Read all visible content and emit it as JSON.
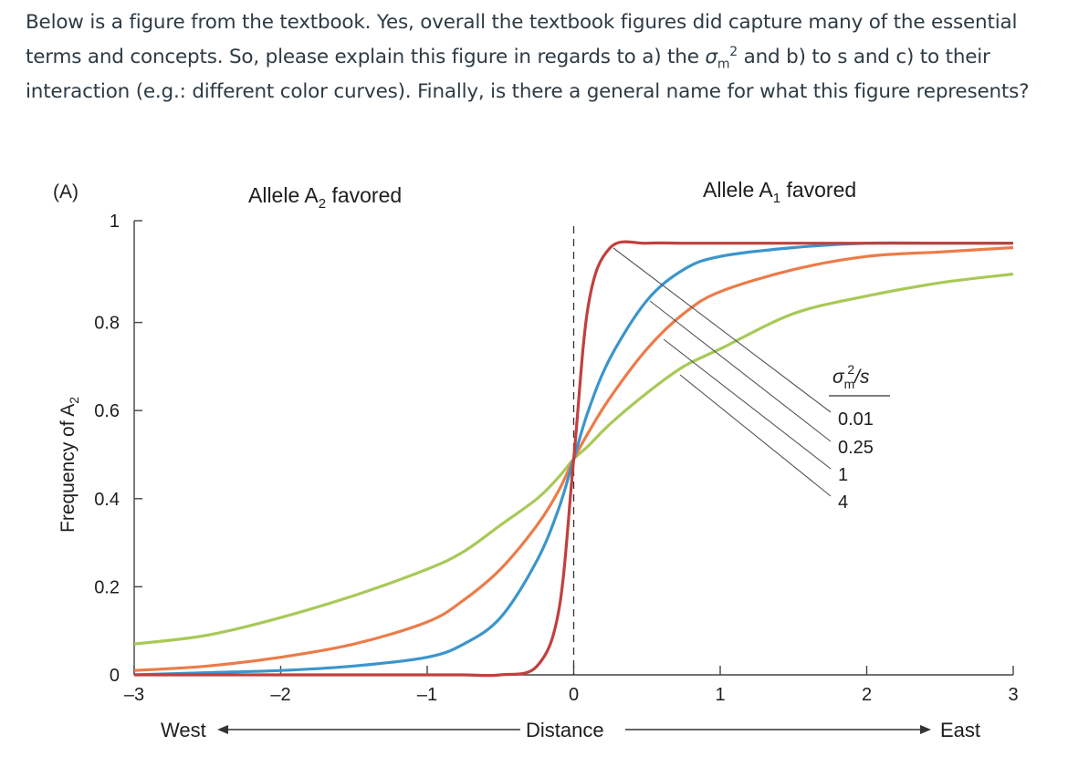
{
  "question": {
    "part1": "Below is a figure from the textbook. Yes, overall the textbook figures did capture many of the essential terms and concepts. So, please explain this figure in regards to a) the ",
    "sigma": "σ",
    "sub": "m",
    "sup": "2",
    "part2": " and b) to s and c) to their interaction (e.g.: different color curves). Finally, is there a general name for what this figure represents?"
  },
  "figure": {
    "panel_label": "(A)",
    "header_left": {
      "prefix": "Allele A",
      "sub": "2",
      "suffix": " favored"
    },
    "header_right": {
      "prefix": "Allele A",
      "sub": "1",
      "suffix": " favored"
    },
    "west_label": "West",
    "east_label": "East",
    "distance_label": "Distance",
    "legend_title": {
      "sigma": "σ",
      "sub": "m",
      "sup": "2",
      "slash": "/s"
    }
  },
  "chart_data": {
    "type": "line",
    "title": "",
    "xlabel": "Distance",
    "ylabel": "Frequency of A2",
    "ylabel_parts": {
      "text": "Frequency of A",
      "sub": "2"
    },
    "xlim": [
      -3,
      3
    ],
    "ylim": [
      0,
      1
    ],
    "x_ticks": [
      "–3",
      "–2",
      "–1",
      "0",
      "1",
      "2",
      "3"
    ],
    "y_ticks": [
      "0",
      "0.2",
      "0.4",
      "0.6",
      "0.8",
      "1"
    ],
    "grid": false,
    "center_line": 0,
    "x": [
      -3,
      -2.5,
      -2,
      -1.5,
      -1,
      -0.75,
      -0.5,
      -0.25,
      -0.1,
      0,
      0.1,
      0.25,
      0.5,
      0.75,
      1,
      1.5,
      2,
      2.5,
      3
    ],
    "series": [
      {
        "name": "0.01",
        "color": "#c1403d",
        "values": [
          0.0,
          0.0,
          0.0,
          0.0,
          0.0,
          0.0,
          0.0,
          0.02,
          0.15,
          0.49,
          0.84,
          0.97,
          0.98,
          0.98,
          0.98,
          0.98,
          0.98,
          0.98,
          0.98
        ]
      },
      {
        "name": "0.25",
        "color": "#3b95cc",
        "values": [
          0.0,
          0.005,
          0.01,
          0.02,
          0.04,
          0.07,
          0.13,
          0.26,
          0.38,
          0.49,
          0.6,
          0.72,
          0.85,
          0.92,
          0.95,
          0.97,
          0.98,
          0.98,
          0.98
        ]
      },
      {
        "name": "1",
        "color": "#ec7b48",
        "values": [
          0.01,
          0.02,
          0.04,
          0.07,
          0.12,
          0.17,
          0.24,
          0.34,
          0.42,
          0.49,
          0.55,
          0.63,
          0.74,
          0.82,
          0.87,
          0.92,
          0.95,
          0.96,
          0.97
        ]
      },
      {
        "name": "4",
        "color": "#a8c957",
        "values": [
          0.07,
          0.09,
          0.13,
          0.18,
          0.24,
          0.28,
          0.34,
          0.4,
          0.45,
          0.49,
          0.52,
          0.57,
          0.64,
          0.7,
          0.74,
          0.82,
          0.86,
          0.89,
          0.91
        ]
      }
    ]
  }
}
